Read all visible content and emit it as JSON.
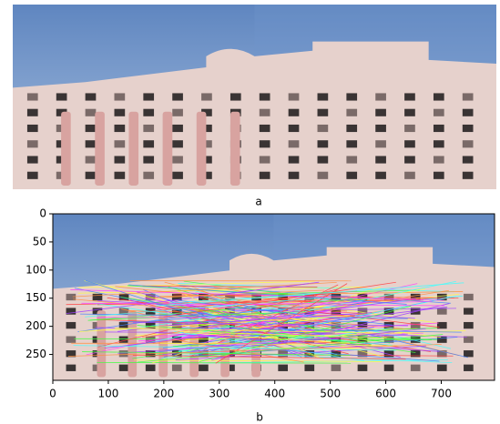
{
  "chart_data": [
    {
      "type": "image",
      "label": "a"
    },
    {
      "type": "image",
      "label": "b",
      "xlim": [
        0,
        796
      ],
      "ylim": [
        296,
        0
      ],
      "xticks": [
        0,
        100,
        200,
        300,
        400,
        500,
        600,
        700
      ],
      "yticks": [
        0,
        50,
        100,
        150,
        200,
        250
      ]
    }
  ]
}
